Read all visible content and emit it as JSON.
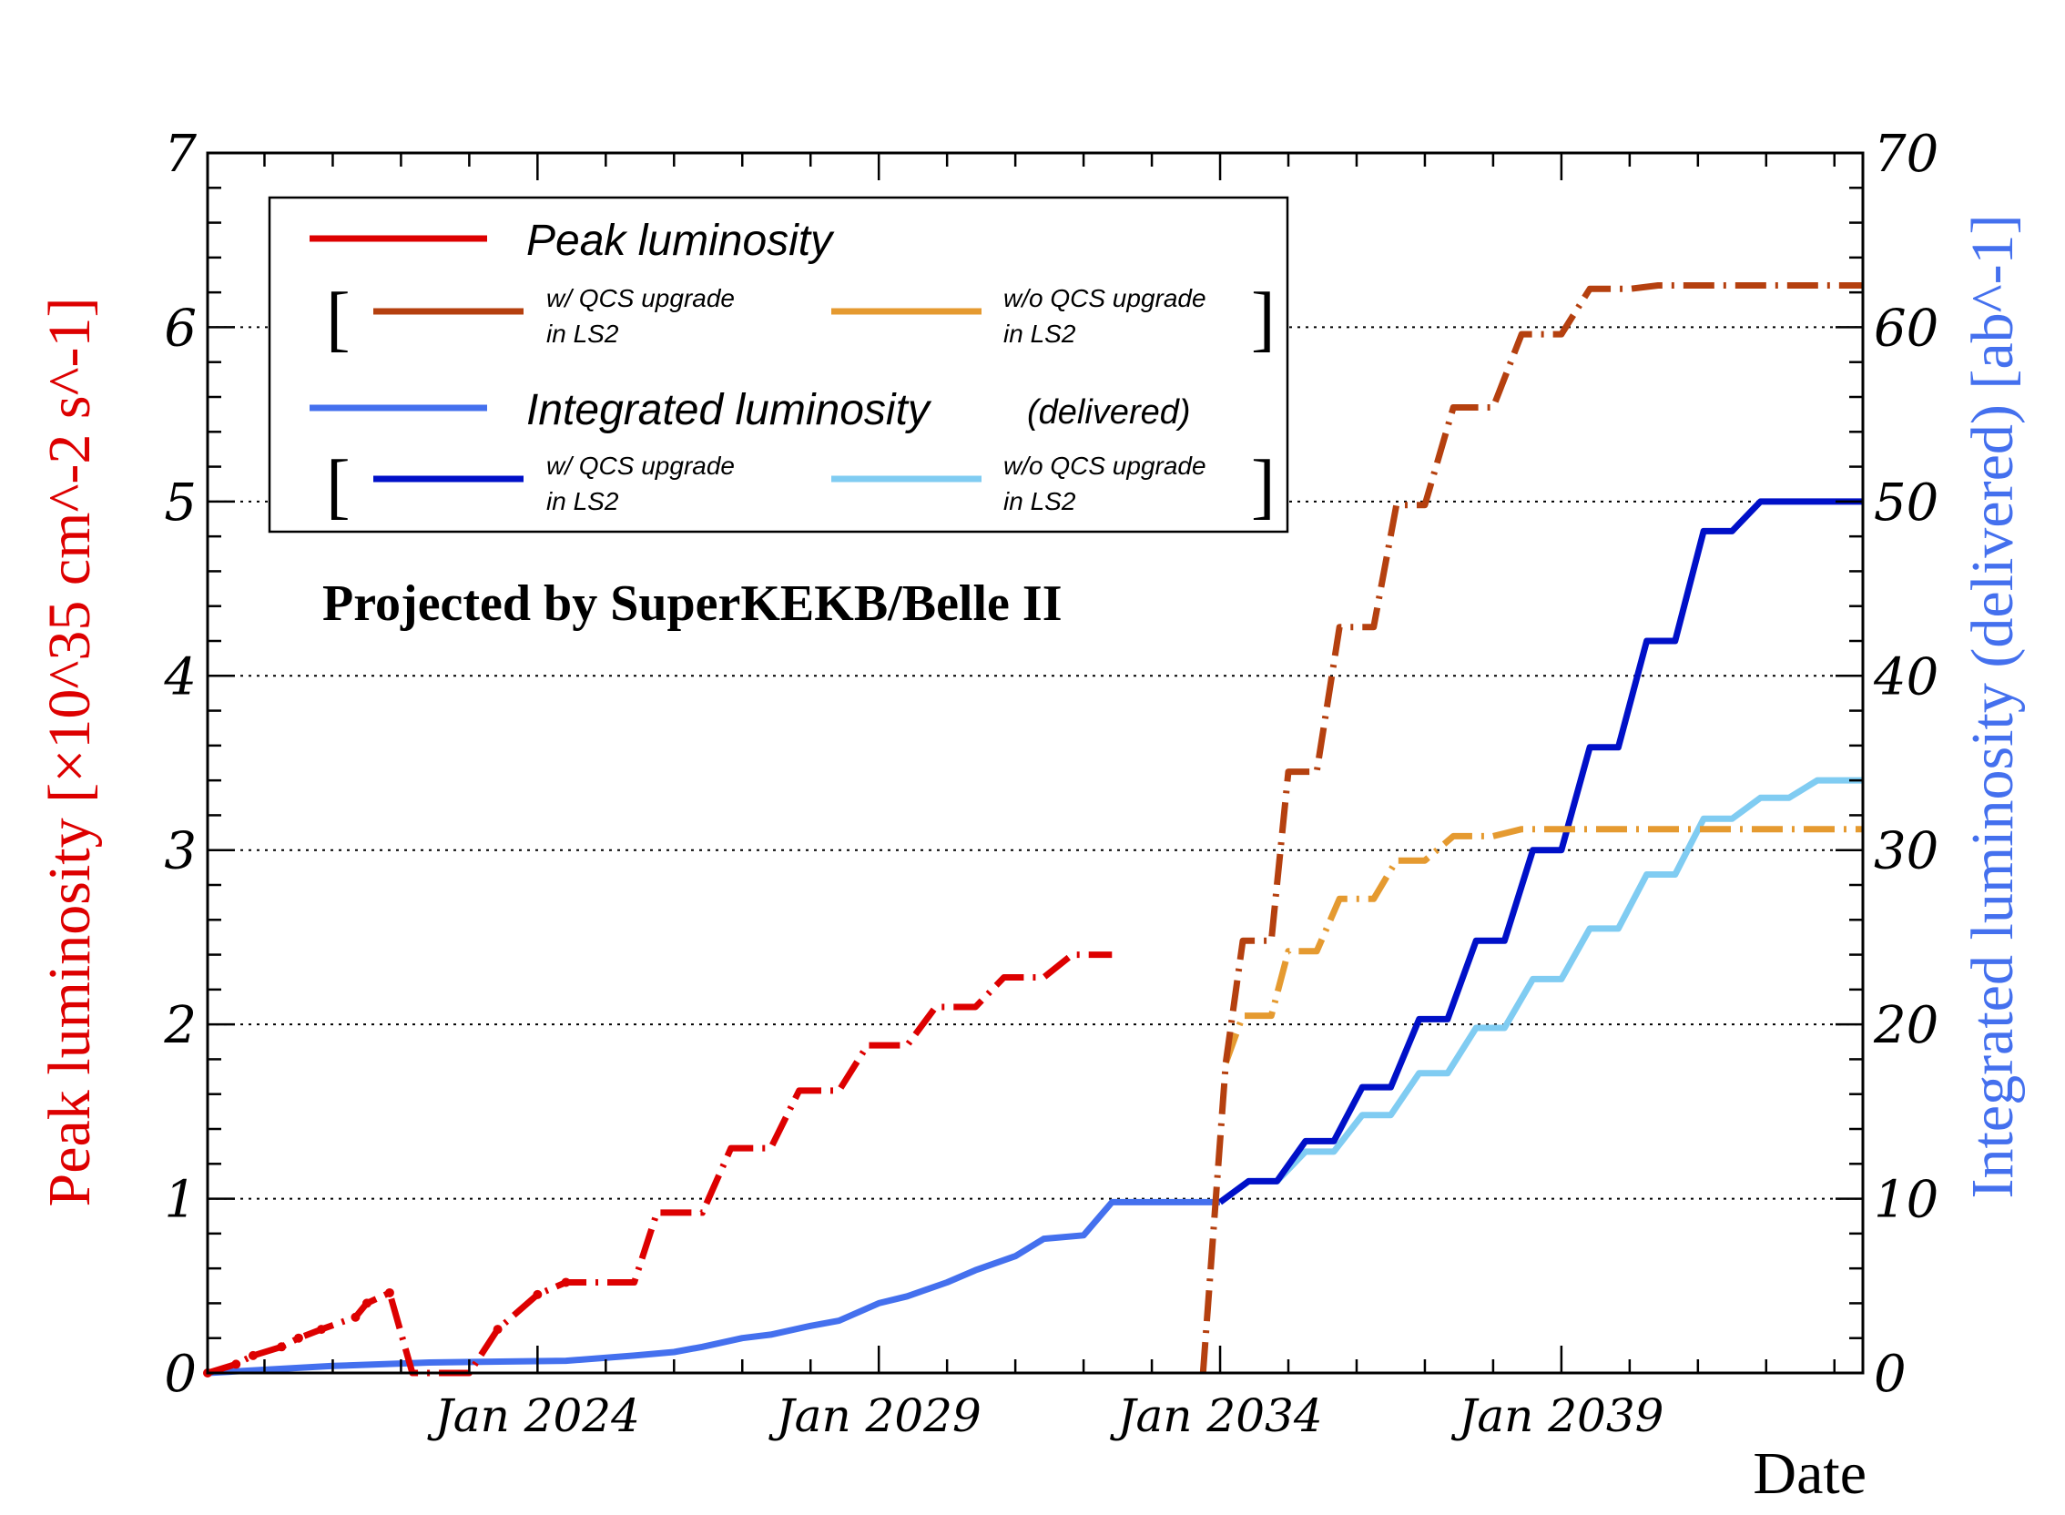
{
  "chart_data": {
    "type": "line",
    "xlabel": "Date",
    "ylabel_left": "Peak luminosity [×10^35 cm^-2 s^-1]",
    "ylabel_right": "Integrated luminosity (delivered) [ab^-1]",
    "x_range": [
      "2019-03",
      "2043-06"
    ],
    "ylim_left": [
      0,
      7
    ],
    "ylim_right": [
      0,
      70
    ],
    "x_tick_labels": [
      "Jan 2024",
      "Jan 2029",
      "Jan 2034",
      "Jan 2039"
    ],
    "y_tick_labels_left": [
      "0",
      "1",
      "2",
      "3",
      "4",
      "5",
      "6",
      "7"
    ],
    "y_tick_labels_right": [
      "0",
      "10",
      "20",
      "30",
      "40",
      "50",
      "60",
      "70"
    ],
    "grid": "horizontal dotted",
    "annotation": "Projected by SuperKEKB/Belle II",
    "colors": {
      "peak": "#dd0000",
      "peak_qcs": "#b5400f",
      "peak_noqcs": "#e59a30",
      "int": "#4470ee",
      "int_qcs": "#0010c8",
      "int_noqcs": "#80ccf2",
      "history": "#000000"
    },
    "legend": {
      "peak": "Peak luminosity",
      "integrated": "Integrated luminosity",
      "delivered": "(delivered)",
      "qcs_line1": "w/ QCS upgrade",
      "noqcs_line1": "w/o QCS upgrade",
      "ls2": "in LS2",
      "bracket_open": "[",
      "bracket_close": "]"
    },
    "series": [
      {
        "key": "peak",
        "axis": "left",
        "dash": "projection",
        "x": [
          "2019-03",
          "2019-08",
          "2019-11",
          "2020-04",
          "2020-07",
          "2020-11",
          "2021-05",
          "2021-07",
          "2021-11",
          "2022-03",
          "2022-06",
          "2022-09",
          "2023-01",
          "2023-06",
          "2024-01",
          "2024-06",
          "2024-09",
          "2025-06",
          "2025-10",
          "2026-06",
          "2026-11",
          "2027-06",
          "2027-11",
          "2028-06",
          "2028-11",
          "2029-06",
          "2029-11",
          "2030-06",
          "2030-11",
          "2031-06",
          "2031-11",
          "2032-06"
        ],
        "y": [
          0.0,
          0.05,
          0.1,
          0.15,
          0.2,
          0.25,
          0.32,
          0.4,
          0.46,
          0.0,
          0.0,
          0.0,
          0.0,
          0.25,
          0.45,
          0.52,
          0.52,
          0.52,
          0.92,
          0.92,
          1.29,
          1.29,
          1.62,
          1.62,
          1.88,
          1.88,
          2.1,
          2.1,
          2.27,
          2.27,
          2.4,
          2.4
        ]
      },
      {
        "key": "peak_qcs",
        "axis": "left",
        "dash": "projection",
        "x": [
          "2033-10",
          "2034-02",
          "2034-05",
          "2034-10",
          "2035-01",
          "2035-06",
          "2035-10",
          "2036-04",
          "2036-08",
          "2037-01",
          "2037-06",
          "2038-01",
          "2038-06",
          "2039-01",
          "2039-06",
          "2040-01",
          "2040-06",
          "2041-01",
          "2041-06",
          "2042-06",
          "2043-06"
        ],
        "y": [
          0.0,
          1.78,
          2.48,
          2.48,
          3.45,
          3.45,
          4.28,
          4.28,
          4.98,
          4.98,
          5.54,
          5.54,
          5.96,
          5.96,
          6.22,
          6.22,
          6.24,
          6.24,
          6.24,
          6.24,
          6.24
        ]
      },
      {
        "key": "peak_noqcs",
        "axis": "left",
        "dash": "projection",
        "x": [
          "2034-02",
          "2034-05",
          "2034-10",
          "2035-01",
          "2035-06",
          "2035-10",
          "2036-04",
          "2036-08",
          "2037-01",
          "2037-06",
          "2038-01",
          "2038-06",
          "2039-01",
          "2039-06",
          "2040-01",
          "2040-06",
          "2041-01",
          "2041-06",
          "2042-06",
          "2043-06"
        ],
        "y": [
          1.78,
          2.05,
          2.05,
          2.42,
          2.42,
          2.72,
          2.72,
          2.94,
          2.94,
          3.08,
          3.08,
          3.12,
          3.12,
          3.12,
          3.12,
          3.12,
          3.12,
          3.12,
          3.12,
          3.12
        ]
      },
      {
        "key": "int",
        "axis": "right",
        "dash": "solid",
        "x": [
          "2019-03",
          "2021-01",
          "2022-06",
          "2024-06",
          "2025-06",
          "2026-01",
          "2026-06",
          "2027-01",
          "2027-06",
          "2028-01",
          "2028-06",
          "2029-01",
          "2029-06",
          "2030-01",
          "2030-06",
          "2031-01",
          "2031-06",
          "2032-01",
          "2032-06",
          "2033-01",
          "2033-06",
          "2034-01"
        ],
        "y": [
          0,
          0.4,
          0.6,
          0.7,
          1.0,
          1.2,
          1.5,
          2.0,
          2.2,
          2.7,
          3.0,
          4.0,
          4.4,
          5.2,
          5.9,
          6.7,
          7.7,
          7.9,
          9.8,
          9.8,
          9.8,
          9.8
        ]
      },
      {
        "key": "int_qcs",
        "axis": "right",
        "dash": "solid",
        "x": [
          "2034-01",
          "2034-06",
          "2034-11",
          "2035-04",
          "2035-09",
          "2036-02",
          "2036-07",
          "2036-12",
          "2037-05",
          "2037-10",
          "2038-03",
          "2038-08",
          "2039-01",
          "2039-06",
          "2039-11",
          "2040-04",
          "2040-09",
          "2041-02",
          "2041-07",
          "2041-12",
          "2042-05",
          "2042-10",
          "2043-03",
          "2043-06"
        ],
        "y": [
          9.8,
          11.0,
          11.0,
          13.3,
          13.3,
          16.4,
          16.4,
          20.3,
          20.3,
          24.8,
          24.8,
          30.0,
          30.0,
          35.9,
          35.9,
          42.0,
          42.0,
          48.3,
          48.3,
          50.0,
          50.0,
          50.0,
          50.0,
          50.0
        ]
      },
      {
        "key": "int_noqcs",
        "axis": "right",
        "dash": "solid",
        "x": [
          "2034-01",
          "2034-06",
          "2034-11",
          "2035-04",
          "2035-09",
          "2036-02",
          "2036-07",
          "2036-12",
          "2037-05",
          "2037-10",
          "2038-03",
          "2038-08",
          "2039-01",
          "2039-06",
          "2039-11",
          "2040-04",
          "2040-09",
          "2041-02",
          "2041-07",
          "2041-12",
          "2042-05",
          "2042-10",
          "2043-03",
          "2043-06"
        ],
        "y": [
          9.8,
          11.0,
          11.0,
          12.7,
          12.7,
          14.8,
          14.8,
          17.2,
          17.2,
          19.8,
          19.8,
          22.6,
          22.6,
          25.5,
          25.5,
          28.6,
          28.6,
          31.8,
          31.8,
          33.0,
          33.0,
          34.0,
          34.0,
          34.0
        ]
      }
    ]
  }
}
